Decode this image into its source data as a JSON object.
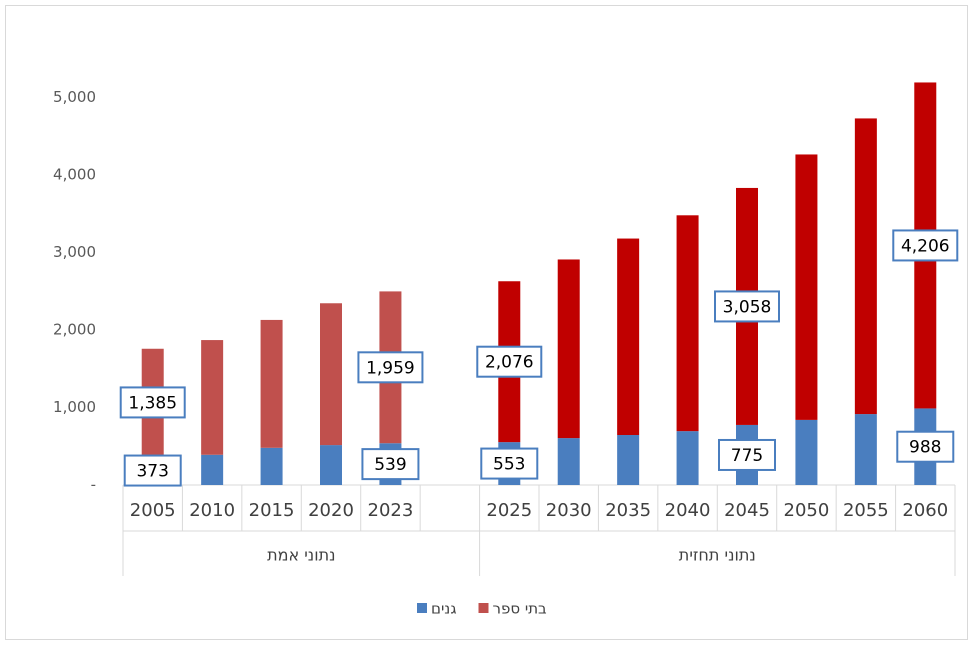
{
  "chart_data": {
    "type": "stacked_bar",
    "categories": [
      "2005",
      "2010",
      "2015",
      "2020",
      "2023",
      null,
      "2025",
      "2030",
      "2035",
      "2040",
      "2045",
      "2050",
      "2055",
      "2060"
    ],
    "groups": [
      {
        "label": "נתוני אמת",
        "span": 6
      },
      {
        "label": "נתוני תחזית",
        "span": 8
      }
    ],
    "series": [
      {
        "name": "גנים",
        "color": "#4a7ebf",
        "values": [
          373,
          390,
          480,
          515,
          539,
          null,
          553,
          605,
          645,
          695,
          775,
          840,
          915,
          988
        ],
        "value_labels": [
          "373",
          null,
          null,
          null,
          "539",
          null,
          "553",
          null,
          null,
          null,
          "775",
          null,
          null,
          "988"
        ]
      },
      {
        "name": "בתי ספר",
        "color": "#c0504d",
        "bar_colors": [
          "#c0504d",
          "#c0504d",
          "#c0504d",
          "#c0504d",
          "#c0504d",
          null,
          "#c00000",
          "#c00000",
          "#c00000",
          "#c00000",
          "#c00000",
          "#c00000",
          "#c00000",
          "#c00000"
        ],
        "values": [
          1385,
          1480,
          1650,
          1830,
          1959,
          null,
          2076,
          2305,
          2535,
          2785,
          3058,
          3425,
          3815,
          4206
        ],
        "value_labels": [
          "1,385",
          null,
          null,
          null,
          "1,959",
          null,
          "2,076",
          null,
          null,
          null,
          "3,058",
          null,
          null,
          "4,206"
        ]
      }
    ],
    "ylim": [
      0,
      5600
    ],
    "yticks": [
      {
        "value": 0,
        "label": "-"
      },
      {
        "value": 1000,
        "label": "1,000"
      },
      {
        "value": 2000,
        "label": "2,000"
      },
      {
        "value": 3000,
        "label": "3,000"
      },
      {
        "value": 4000,
        "label": "4,000"
      },
      {
        "value": 5000,
        "label": "5,000"
      }
    ],
    "legend": "bottom",
    "grid": false
  }
}
